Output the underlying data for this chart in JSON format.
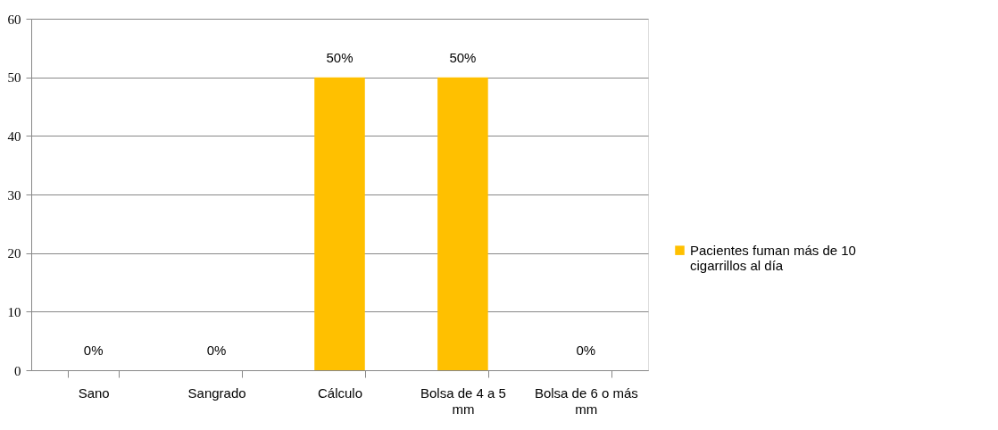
{
  "chart_data": {
    "type": "bar",
    "categories": [
      "Sano",
      "Sangrado",
      "Cálculo",
      "Bolsa de 4 a 5 mm",
      "Bolsa de 6 o más mm"
    ],
    "series": [
      {
        "name": "Pacientes fuman más de 10 cigarrillos al día",
        "color": "#ffc000",
        "values": [
          0,
          0,
          50,
          50,
          0
        ],
        "value_labels": [
          "0%",
          "0%",
          "50%",
          "50%",
          "0%"
        ]
      }
    ],
    "ylim": [
      0,
      60
    ],
    "yticks": [
      0,
      10,
      20,
      30,
      40,
      50,
      60
    ],
    "grid": "y",
    "legend": "right"
  }
}
